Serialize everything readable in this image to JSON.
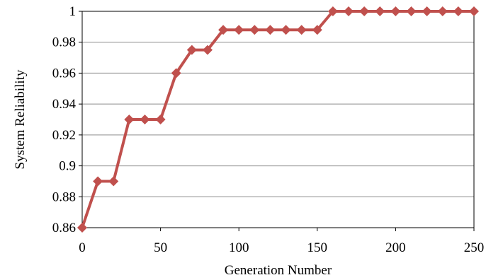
{
  "chart_data": {
    "type": "line",
    "title": "",
    "xlabel": "Generation Number",
    "ylabel": "System Reliability",
    "xlim": [
      0,
      250
    ],
    "ylim": [
      0.86,
      1
    ],
    "x_ticks": [
      0,
      50,
      100,
      150,
      200,
      250
    ],
    "y_ticks": [
      0.86,
      0.88,
      0.9,
      0.92,
      0.94,
      0.96,
      0.98,
      1
    ],
    "y_tick_labels": [
      "0.86",
      "0.88",
      "0.9",
      "0.92",
      "0.94",
      "0.96",
      "0.98",
      "1"
    ],
    "x_tick_labels": [
      "0",
      "50",
      "100",
      "150",
      "200",
      "250"
    ],
    "grid": "horizontal",
    "legend": "none",
    "series": [
      {
        "color": "#c0504d",
        "marker": "diamond",
        "x": [
          0,
          10,
          20,
          30,
          40,
          50,
          60,
          70,
          80,
          90,
          100,
          110,
          120,
          130,
          140,
          150,
          160,
          170,
          180,
          190,
          200,
          210,
          220,
          230,
          240,
          250
        ],
        "y": [
          0.86,
          0.89,
          0.89,
          0.93,
          0.93,
          0.93,
          0.96,
          0.975,
          0.975,
          0.988,
          0.988,
          0.988,
          0.988,
          0.988,
          0.988,
          0.988,
          1,
          1,
          1,
          1,
          1,
          1,
          1,
          1,
          1,
          1
        ]
      }
    ]
  }
}
